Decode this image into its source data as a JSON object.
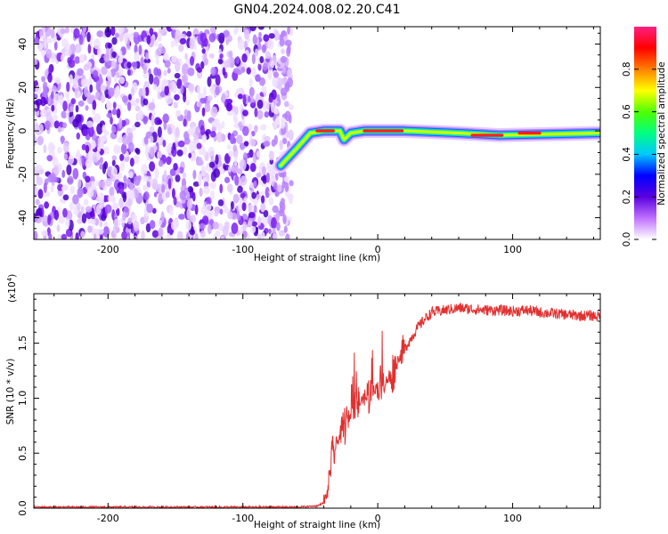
{
  "title": "GN04.2024.008.02.20.C41",
  "chart_data": [
    {
      "type": "heatmap",
      "xlabel": "Height of straight line (km)",
      "ylabel": "Frequency (Hz)",
      "xlim": [
        -255,
        165
      ],
      "ylim": [
        -50,
        48
      ],
      "xticks": [
        -200,
        -100,
        0,
        100
      ],
      "yticks": [
        -40,
        -20,
        0,
        20,
        40
      ],
      "colorbar": {
        "label": "Normalized spectral amplitude",
        "range": [
          0.0,
          1.0
        ],
        "ticks": [
          "0.0",
          "0.2",
          "0.4",
          "0.6",
          "0.8"
        ],
        "colormap": [
          "#ffffff",
          "#c070ff",
          "#5a00e0",
          "#0000ff",
          "#00c8ff",
          "#00ff80",
          "#50ff00",
          "#ffff00",
          "#ff8000",
          "#ff0000",
          "#ff2080"
        ]
      },
      "noise_region": {
        "x_from": -255,
        "x_to": -68
      },
      "signal_track": [
        {
          "x": -72,
          "y": -16
        },
        {
          "x": -60,
          "y": -8
        },
        {
          "x": -50,
          "y": -1
        },
        {
          "x": -40,
          "y": 0
        },
        {
          "x": -28,
          "y": 0
        },
        {
          "x": -25,
          "y": -4
        },
        {
          "x": -20,
          "y": -1
        },
        {
          "x": -10,
          "y": 0
        },
        {
          "x": 20,
          "y": 0
        },
        {
          "x": 60,
          "y": -1
        },
        {
          "x": 90,
          "y": -2
        },
        {
          "x": 165,
          "y": -1
        }
      ]
    },
    {
      "type": "line",
      "xlabel": "Height of straight line (km)",
      "ylabel": "SNR (10 * v/v)",
      "multiplier": "(x10",
      "multiplier_exp": "4",
      "multiplier_close": ")",
      "xlim": [
        -255,
        165
      ],
      "ylim": [
        0.0,
        1.95
      ],
      "xticks": [
        -200,
        -100,
        0,
        100
      ],
      "yticks": [
        "0.0",
        "0.5",
        "1.0",
        "1.5"
      ],
      "line_color": "#e03030",
      "series": [
        {
          "x": [
            -255,
            -200,
            -150,
            -100,
            -60,
            -45,
            -40,
            -37,
            -35,
            -30,
            -25,
            -20,
            -15,
            -10,
            -5,
            0,
            5,
            10,
            15,
            20,
            25,
            30,
            35,
            40,
            50,
            60,
            70,
            80,
            90,
            100,
            110,
            120,
            130,
            140,
            150,
            160,
            165
          ],
          "y": [
            0.01,
            0.01,
            0.01,
            0.01,
            0.01,
            0.02,
            0.05,
            0.15,
            0.4,
            0.6,
            0.75,
            0.85,
            0.95,
            1.0,
            1.05,
            1.1,
            1.15,
            1.2,
            1.35,
            1.45,
            1.55,
            1.65,
            1.72,
            1.78,
            1.8,
            1.82,
            1.81,
            1.8,
            1.8,
            1.79,
            1.8,
            1.78,
            1.77,
            1.76,
            1.75,
            1.75,
            1.74
          ]
        }
      ]
    }
  ]
}
